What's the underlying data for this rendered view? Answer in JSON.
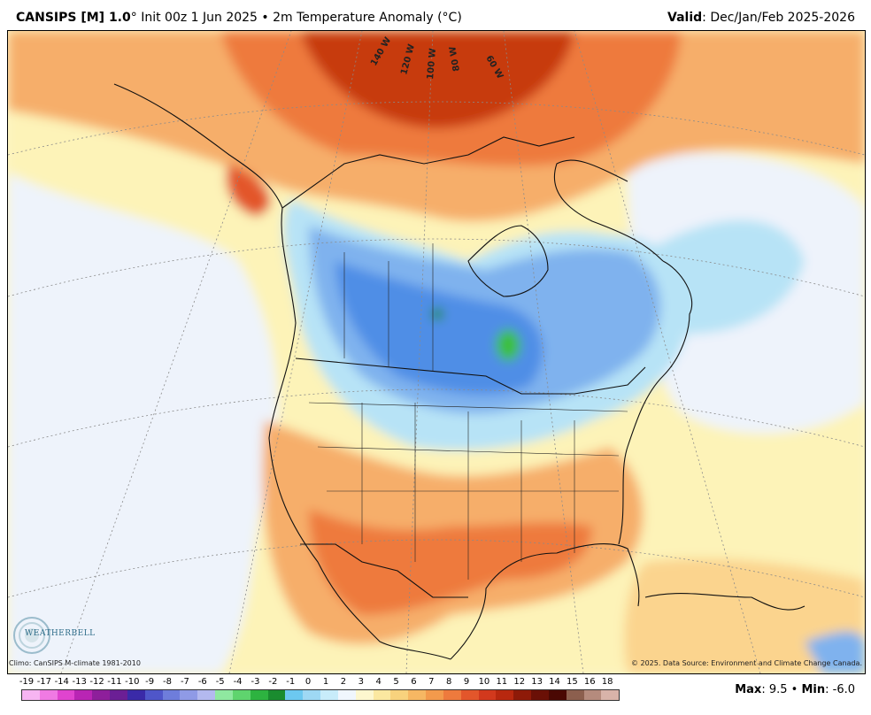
{
  "header": {
    "model": "CANSIPS [M] 1.0",
    "init": "° Init 00z 1 Jun 2025 • 2m Temperature Anomaly (°C)",
    "valid_label": "Valid",
    "valid_value": ": Dec/Jan/Feb 2025-2026"
  },
  "map": {
    "longitude_labels": [
      "140 W",
      "120 W",
      "100 W",
      "80 W",
      "60 W"
    ],
    "colors": {
      "strong_warm": "#c73a0c",
      "warm": "#ee7a3d",
      "mild_warm": "#f6ae6a",
      "light_warm": "#fbd48e",
      "near_zero": "#fdf3b8",
      "neutral": "#eef3fb",
      "light_cool": "#b7e3f6",
      "cool": "#7fb2ee",
      "cold": "#4f8ee6",
      "green": "#3cbf3c"
    }
  },
  "footer": {
    "climo": "Climo: CanSIPS M-climate 1981-2010",
    "copyright": "© 2025. Data Source: Environment and Climate Change Canada.",
    "logo_text": "WEATHERBELL",
    "max_label": "Max",
    "max_value": ": 9.5 • ",
    "min_label": "Min",
    "min_value": ": -6.0"
  },
  "legend": {
    "labels": [
      "-19",
      "-17",
      "-14",
      "-13",
      "-12",
      "-11",
      "-10",
      "-9",
      "-8",
      "-7",
      "-6",
      "-5",
      "-4",
      "-3",
      "-2",
      "-1",
      "0",
      "1",
      "2",
      "3",
      "4",
      "5",
      "6",
      "7",
      "8",
      "9",
      "10",
      "11",
      "12",
      "13",
      "14",
      "15",
      "16",
      "18"
    ],
    "colors": [
      "#f7b5f2",
      "#f07ae3",
      "#e044cf",
      "#b925b4",
      "#8e1f9b",
      "#6b1f95",
      "#3a2aa8",
      "#4f56c9",
      "#6e7ddb",
      "#8f9ae6",
      "#b3b9ef",
      "#8fe8a0",
      "#5fd46e",
      "#2db340",
      "#1a8c2f",
      "#6cc8f0",
      "#9ed8f4",
      "#c8ecfa",
      "#f0f6fd",
      "#fdf7cf",
      "#fbe8a0",
      "#f8d27d",
      "#f6b763",
      "#f39a4c",
      "#ee7a3d",
      "#e3562b",
      "#d2391d",
      "#b8280f",
      "#8e1a08",
      "#6a1006",
      "#4a0803",
      "#8c5f4e",
      "#b58b7d",
      "#d8b3a9"
    ]
  }
}
